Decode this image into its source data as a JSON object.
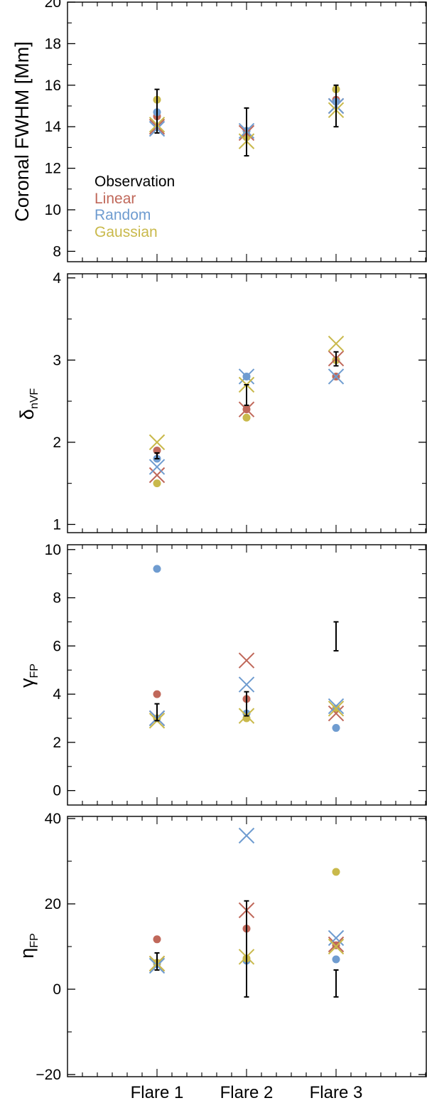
{
  "chart_data": {
    "type": "scatter",
    "categories": [
      "Flare 1",
      "Flare 2",
      "Flare 3"
    ],
    "colors": {
      "Observation": "#000000",
      "Linear": "#c0685a",
      "Random": "#6f9cd0",
      "Gaussian": "#c9b94b"
    },
    "legend": [
      "Observation",
      "Linear",
      "Random",
      "Gaussian"
    ],
    "marker_key": {
      "dot": "circle",
      "model": "x"
    },
    "panels": [
      {
        "ylabel": "Coronal FWHM [Mm]",
        "ylabel_base": "",
        "ylabel_sub": "",
        "ylim": [
          7.5,
          20
        ],
        "yticks": [
          8,
          10,
          12,
          14,
          16,
          18,
          20
        ],
        "ytick_labels": [
          "8",
          "10",
          "12",
          "14",
          "16",
          "18",
          "20"
        ],
        "observation": [
          {
            "center": 14.5,
            "low": 13.7,
            "high": 15.8
          },
          {
            "center": 13.7,
            "low": 12.6,
            "high": 14.9
          },
          {
            "center": 15.0,
            "low": 14.0,
            "high": 16.0
          }
        ],
        "series": [
          {
            "name": "Linear",
            "circle": [
              14.5,
              13.5,
              15.3
            ],
            "x": [
              14.0,
              13.7,
              15.0
            ]
          },
          {
            "name": "Random",
            "circle": [
              14.7,
              13.8,
              15.2
            ],
            "x": [
              13.9,
              13.8,
              15.0
            ]
          },
          {
            "name": "Gaussian",
            "circle": [
              15.3,
              13.6,
              15.8
            ],
            "x": [
              14.1,
              13.3,
              14.8
            ]
          }
        ]
      },
      {
        "ylabel": "",
        "ylabel_base": "δ",
        "ylabel_sub": "nVF",
        "ylim": [
          0.9,
          4.05
        ],
        "yticks": [
          1,
          2,
          3,
          4
        ],
        "ytick_labels": [
          "1",
          "2",
          "3",
          "4"
        ],
        "observation": [
          {
            "center": 1.84,
            "low": 1.8,
            "high": 1.87
          },
          {
            "center": 2.55,
            "low": 2.45,
            "high": 2.7
          },
          {
            "center": 3.0,
            "low": 2.93,
            "high": 3.1
          }
        ],
        "series": [
          {
            "name": "Linear",
            "circle": [
              1.9,
              2.4,
              2.8
            ],
            "x": [
              1.6,
              2.4,
              3.02
            ]
          },
          {
            "name": "Random",
            "circle": [
              1.8,
              2.8,
              3.0
            ],
            "x": [
              1.7,
              2.8,
              2.8
            ]
          },
          {
            "name": "Gaussian",
            "circle": [
              1.5,
              2.3,
              3.0
            ],
            "x": [
              2.0,
              2.7,
              3.2
            ]
          }
        ]
      },
      {
        "ylabel": "",
        "ylabel_base": "γ",
        "ylabel_sub": "FP",
        "ylim": [
          -0.6,
          10.2
        ],
        "yticks": [
          0,
          2,
          4,
          6,
          8,
          10
        ],
        "ytick_labels": [
          "0",
          "2",
          "4",
          "6",
          "8",
          "10"
        ],
        "observation": [
          {
            "center": 3.1,
            "low": 2.9,
            "high": 3.6
          },
          {
            "center": 3.6,
            "low": 3.1,
            "high": 4.1
          },
          {
            "center": 6.4,
            "low": 5.8,
            "high": 7.0
          }
        ],
        "series": [
          {
            "name": "Linear",
            "circle": [
              4.0,
              3.8,
              3.4
            ],
            "x": [
              3.0,
              5.4,
              3.2
            ]
          },
          {
            "name": "Random",
            "circle": [
              9.2,
              3.2,
              2.6
            ],
            "x": [
              3.0,
              4.4,
              3.5
            ]
          },
          {
            "name": "Gaussian",
            "circle": [
              3.0,
              3.0,
              3.4
            ],
            "x": [
              2.9,
              3.1,
              3.4
            ]
          }
        ]
      },
      {
        "ylabel": "",
        "ylabel_base": "η",
        "ylabel_sub": "FP",
        "ylim": [
          -20.5,
          40.5
        ],
        "yticks": [
          -20,
          0,
          20,
          40
        ],
        "ytick_labels": [
          "−20",
          "0",
          "20",
          "40"
        ],
        "observation": [
          {
            "center": 6.5,
            "low": 4.5,
            "high": 8.5
          },
          {
            "center": 9.5,
            "low": -1.8,
            "high": 20.7
          },
          {
            "center": 1.3,
            "low": -1.8,
            "high": 4.5
          }
        ],
        "series": [
          {
            "name": "Linear",
            "circle": [
              11.7,
              14.2,
              10.3
            ],
            "x": [
              6.0,
              18.5,
              10.5
            ]
          },
          {
            "name": "Random",
            "circle": [
              6.0,
              6.7,
              7.0
            ],
            "x": [
              5.5,
              36.0,
              12.0
            ]
          },
          {
            "name": "Gaussian",
            "circle": [
              6.2,
              7.2,
              27.5
            ],
            "x": [
              6.0,
              7.6,
              10.0
            ]
          }
        ]
      }
    ]
  }
}
